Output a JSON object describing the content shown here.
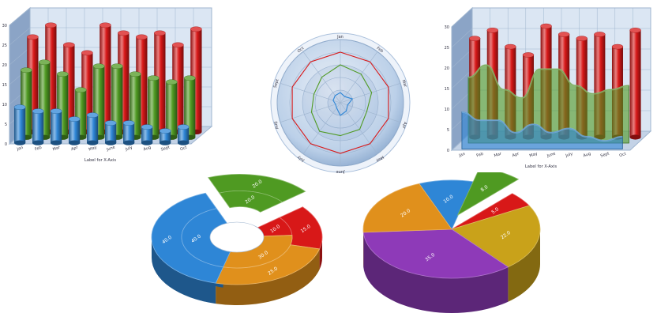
{
  "colors": {
    "red": "#d81818",
    "green": "#4f9a22",
    "blue": "#2e86d6",
    "orange": "#e0901c",
    "purple": "#8e3ab8",
    "gold": "#c9a21a",
    "wall": "#dbe6f3",
    "grid": "#9fb5cf"
  },
  "chart_data": [
    {
      "type": "bar",
      "chart": "3d-cylinder-bar",
      "categories": [
        "Jan",
        "Feb",
        "Mar",
        "Apr",
        "May",
        "June",
        "July",
        "Aug",
        "Sept",
        "Oct"
      ],
      "xlabel": "Label for X-Axis",
      "ylabel": "",
      "yticks": [
        "0",
        "5",
        "10",
        "15",
        "20",
        "25",
        "30"
      ],
      "ylim": [
        0,
        30
      ],
      "grid": true,
      "series": [
        {
          "values": [
            24,
            27,
            22,
            20,
            27,
            25,
            24,
            25,
            22,
            26
          ],
          "color": "red"
        },
        {
          "values": [
            17,
            19,
            16,
            12,
            18,
            18,
            16,
            15,
            14,
            15
          ],
          "color": "green"
        },
        {
          "values": [
            9,
            8,
            8,
            6,
            7,
            5,
            5,
            4,
            3,
            4
          ],
          "color": "blue"
        }
      ]
    },
    {
      "type": "radar",
      "chart": "3d-polar",
      "axes": [
        "Jan",
        "Feb",
        "Mar",
        "Apr",
        "May",
        "June",
        "July",
        "Aug",
        "Sept",
        "Oct"
      ],
      "rmax": 5,
      "series": [
        {
          "values": [
            4,
            4,
            4,
            4,
            4,
            4,
            4,
            4,
            4,
            4
          ],
          "color": "red"
        },
        {
          "values": [
            3,
            2.8,
            2.6,
            2.2,
            2.6,
            2.6,
            2.8,
            2.4,
            2.2,
            2.5
          ],
          "color": "green"
        },
        {
          "values": [
            0.8,
            0.6,
            1.0,
            0.6,
            0.8,
            1.0,
            0.5,
            0.4,
            0.6,
            0.7
          ],
          "color": "blue"
        }
      ]
    },
    {
      "type": "area",
      "chart": "3d-bar-and-area",
      "categories": [
        "Jan",
        "Feb",
        "Mar",
        "Apr",
        "May",
        "June",
        "July",
        "Aug",
        "Sept",
        "Oct"
      ],
      "xlabel": "Label for X-Axis",
      "yticks": [
        "0",
        "5",
        "10",
        "15",
        "20",
        "25",
        "30"
      ],
      "ylim": [
        0,
        30
      ],
      "grid": true,
      "series": [
        {
          "values": [
            24,
            26,
            22,
            20,
            27,
            25,
            24,
            25,
            22,
            26
          ],
          "color": "red",
          "kind": "bar"
        },
        {
          "values": [
            16,
            19,
            13,
            11,
            18,
            18,
            14,
            12,
            13,
            14
          ],
          "color": "green",
          "kind": "area"
        },
        {
          "values": [
            9,
            7,
            7,
            4,
            6,
            4,
            5,
            3,
            2,
            3
          ],
          "color": "blue",
          "kind": "area"
        }
      ]
    },
    {
      "type": "pie",
      "chart": "3d-doughnut",
      "rings": [
        {
          "slices": [
            {
              "value": 20.0,
              "label": "20.0",
              "color": "green",
              "exploded": true
            },
            {
              "value": 15.0,
              "label": "15.0",
              "color": "red"
            },
            {
              "value": 25.0,
              "label": "25.0",
              "color": "orange"
            },
            {
              "value": 40.0,
              "label": "40.0",
              "color": "blue"
            }
          ]
        },
        {
          "slices": [
            {
              "value": 20.0,
              "label": "20.0",
              "color": "green",
              "exploded": true
            },
            {
              "value": 10.0,
              "label": "10.0",
              "color": "red"
            },
            {
              "value": 30.0,
              "label": "30.0",
              "color": "orange"
            },
            {
              "value": 40.0,
              "label": "40.0",
              "color": "blue"
            }
          ]
        }
      ]
    },
    {
      "type": "pie",
      "chart": "3d-pie",
      "slices": [
        {
          "value": 10.0,
          "label": "10.0",
          "color": "blue"
        },
        {
          "value": 8.0,
          "label": "8.0",
          "color": "green",
          "exploded": true
        },
        {
          "value": 5.0,
          "label": "5.0",
          "color": "red"
        },
        {
          "value": 22.0,
          "label": "22.0",
          "color": "gold"
        },
        {
          "value": 35.0,
          "label": "35.0",
          "color": "purple"
        },
        {
          "value": 20.0,
          "label": "20.0",
          "color": "orange"
        }
      ]
    }
  ]
}
